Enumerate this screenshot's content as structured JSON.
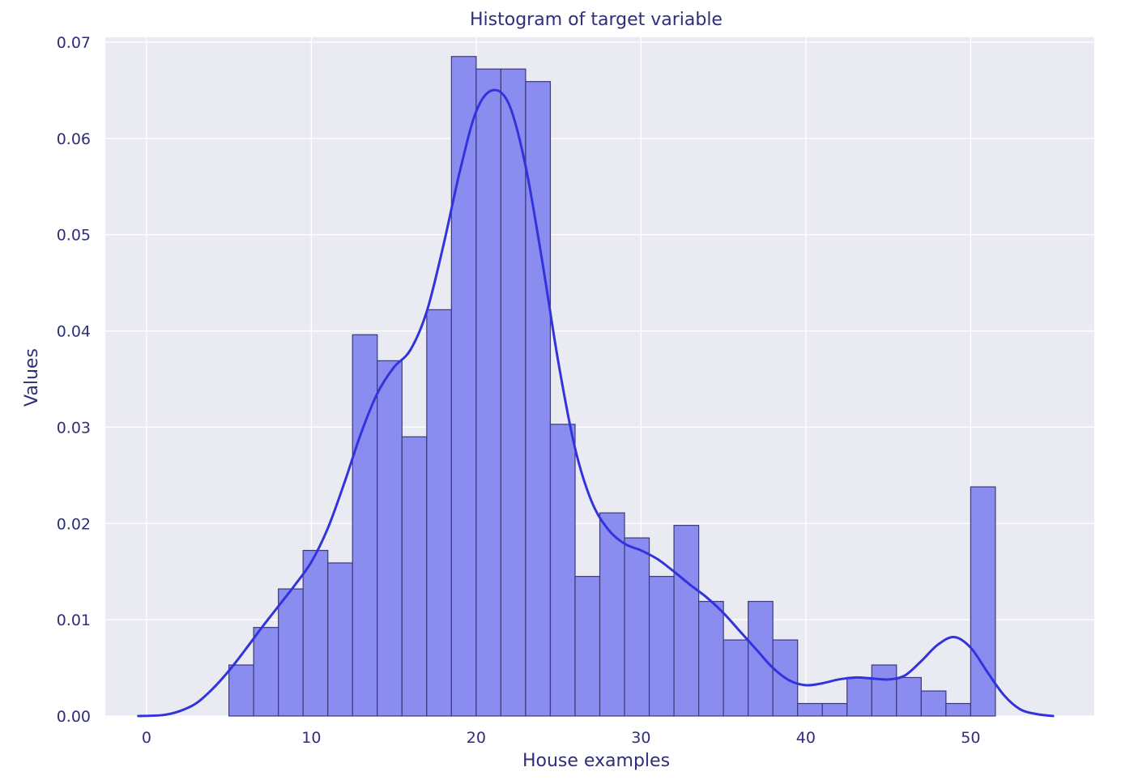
{
  "chart_data": {
    "type": "bar",
    "title": "Histogram of target variable",
    "xlabel": "House examples",
    "ylabel": "Values",
    "xlim": [
      -2.5,
      57.5
    ],
    "ylim": [
      0,
      0.0705
    ],
    "xticks": [
      0,
      10,
      20,
      30,
      40,
      50
    ],
    "yticks": [
      0.0,
      0.01,
      0.02,
      0.03,
      0.04,
      0.05,
      0.06,
      0.07
    ],
    "ytick_labels": [
      "0.00",
      "0.01",
      "0.02",
      "0.03",
      "0.04",
      "0.05",
      "0.06",
      "0.07"
    ],
    "grid": true,
    "bins": {
      "start": 5.0,
      "width": 1.5,
      "heights": [
        0.0053,
        0.0092,
        0.0132,
        0.0172,
        0.0159,
        0.0396,
        0.0369,
        0.029,
        0.0422,
        0.0685,
        0.0672,
        0.0672,
        0.0659,
        0.0303,
        0.0145,
        0.0211,
        0.0185,
        0.0145,
        0.0198,
        0.0119,
        0.0079,
        0.0119,
        0.0079,
        0.0013,
        0.0013,
        0.004,
        0.0053,
        0.004,
        0.0026,
        0.0013,
        0.0238
      ]
    },
    "kde": {
      "x": [
        -0.5,
        1,
        2,
        3,
        4,
        5,
        6,
        7,
        8,
        9,
        10,
        11,
        12,
        13,
        14,
        15,
        16,
        17,
        18,
        19,
        20,
        21,
        22,
        23,
        24,
        25,
        26,
        27,
        28,
        29,
        30,
        31,
        32,
        33,
        34,
        35,
        36,
        37,
        38,
        39,
        40,
        41,
        42,
        43,
        44,
        45,
        46,
        47,
        48,
        49,
        50,
        51,
        52,
        53,
        54,
        55
      ],
      "y": [
        0.0,
        0.0001,
        0.0005,
        0.0013,
        0.0028,
        0.0047,
        0.0069,
        0.0092,
        0.0114,
        0.0136,
        0.016,
        0.0195,
        0.0242,
        0.0293,
        0.0335,
        0.0362,
        0.038,
        0.042,
        0.0488,
        0.0565,
        0.0628,
        0.065,
        0.0635,
        0.0571,
        0.0473,
        0.0366,
        0.0278,
        0.0223,
        0.0194,
        0.0179,
        0.0172,
        0.0163,
        0.015,
        0.0136,
        0.0123,
        0.0107,
        0.0088,
        0.0069,
        0.005,
        0.0037,
        0.0032,
        0.0034,
        0.0038,
        0.004,
        0.0039,
        0.0038,
        0.0042,
        0.0057,
        0.0074,
        0.0082,
        0.0071,
        0.0046,
        0.0022,
        0.0007,
        0.0002,
        0.0
      ]
    },
    "colors": {
      "plot_background": "#eaeaf2",
      "bar_fill": "#8a8cef",
      "bar_edge": "#3a3a7a",
      "kde_line": "#3333dd",
      "grid": "#ffffff",
      "text": "#2e2e7a"
    }
  }
}
